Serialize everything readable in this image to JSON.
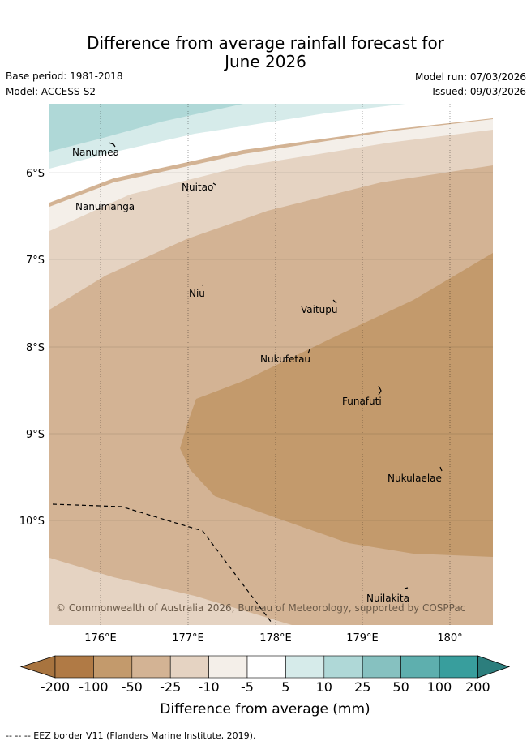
{
  "title": {
    "line1": "Difference from average rainfall forecast for",
    "line2": "June 2026"
  },
  "meta": {
    "base_period": "Base period: 1981-2018",
    "model": "Model: ACCESS-S2",
    "model_run": "Model run: 07/03/2026",
    "issued": "Issued: 09/03/2026"
  },
  "map": {
    "lat_labels": [
      "6°S",
      "7°S",
      "8°S",
      "9°S",
      "10°S"
    ],
    "lon_labels": [
      "176°E",
      "177°E",
      "178°E",
      "179°E",
      "180°"
    ],
    "islands": [
      {
        "name": "Nanumea"
      },
      {
        "name": "Nuitao"
      },
      {
        "name": "Nanumanga"
      },
      {
        "name": "Niu"
      },
      {
        "name": "Vaitupu"
      },
      {
        "name": "Nukufetau"
      },
      {
        "name": "Funafuti"
      },
      {
        "name": "Nukulaelae"
      },
      {
        "name": "Nuilakita"
      }
    ],
    "copyright": "© Commonwealth of Australia 2026, Bureau of Meteorology, supported by COSPPac"
  },
  "colorbar": {
    "colors": [
      "#a8743f",
      "#b07a45",
      "#c39a6c",
      "#d3b394",
      "#e5d3c2",
      "#f4efe9",
      "#ffffff",
      "#d6ebea",
      "#afd8d7",
      "#86c1c0",
      "#5eafae",
      "#389e9d",
      "#2c7e7d"
    ],
    "ticks": [
      "-200",
      "-100",
      "-50",
      "-25",
      "-10",
      "-5",
      "5",
      "10",
      "25",
      "50",
      "100",
      "200"
    ],
    "label": "Difference from average (mm)"
  },
  "footer": {
    "legend": "-- -- -- EEZ border V11 (Flanders Marine Institute, 2019)."
  }
}
